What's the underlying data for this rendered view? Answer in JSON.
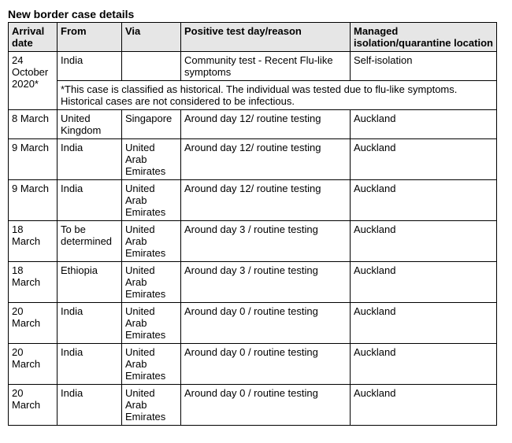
{
  "title": "New border case details",
  "columns": {
    "arrival": "Arrival date",
    "from": "From",
    "via": "Via",
    "test": "Positive test day/reason",
    "location": "Managed isolation/quarantine location"
  },
  "rows": [
    {
      "arrival": "24 October 2020*",
      "from": "India",
      "via": "",
      "test": "Community test - Recent Flu-like symptoms",
      "location": "Self-isolation"
    },
    {
      "note": "*This case is classified as historical. The individual was tested due to flu-like symptoms. Historical cases are not considered to be infectious."
    },
    {
      "arrival": "8 March",
      "from": "United Kingdom",
      "via": "Singapore",
      "test": "Around day 12/ routine testing",
      "location": "Auckland"
    },
    {
      "arrival": "9 March",
      "from": "India",
      "via": "United Arab Emirates",
      "test": "Around day 12/ routine testing",
      "location": "Auckland"
    },
    {
      "arrival": "9 March",
      "from": "India",
      "via": "United Arab Emirates",
      "test": "Around day 12/ routine testing",
      "location": "Auckland"
    },
    {
      "arrival": "18 March",
      "from": "To be determined",
      "via": "United Arab Emirates",
      "test": "Around day 3 / routine testing",
      "location": "Auckland"
    },
    {
      "arrival": "18 March",
      "from": "Ethiopia",
      "via": "United Arab Emirates",
      "test": "Around day 3 / routine testing",
      "location": "Auckland"
    },
    {
      "arrival": "20 March",
      "from": "India",
      "via": "United Arab Emirates",
      "test": "Around day 0 / routine testing",
      "location": "Auckland"
    },
    {
      "arrival": "20 March",
      "from": "India",
      "via": "United Arab Emirates",
      "test": "Around day 0 / routine testing",
      "location": "Auckland"
    },
    {
      "arrival": "20 March",
      "from": "India",
      "via": "United Arab Emirates",
      "test": "Around day 0 / routine testing",
      "location": "Auckland"
    }
  ]
}
